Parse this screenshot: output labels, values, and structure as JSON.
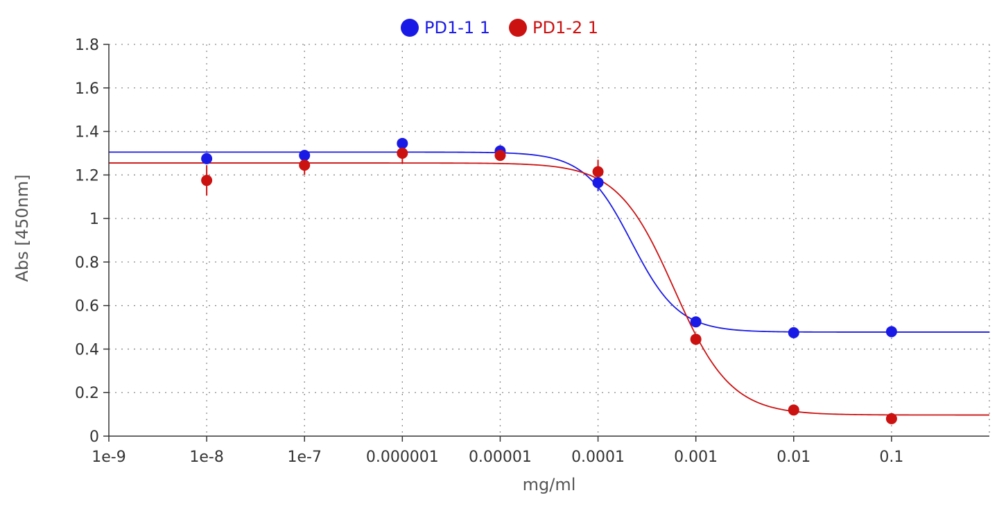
{
  "chart_data": {
    "type": "scatter",
    "title": "",
    "xlabel": "mg/ml",
    "ylabel": "Abs [450nm]",
    "x_scale": "log",
    "xlim": [
      1e-09,
      1
    ],
    "ylim": [
      0,
      1.8
    ],
    "x_ticks": [
      1e-09,
      1e-08,
      1e-07,
      1e-06,
      1e-05,
      0.0001,
      0.001,
      0.01,
      0.1
    ],
    "x_tick_labels": [
      "1e-9",
      "1e-8",
      "1e-7",
      "0.000001",
      "0.00001",
      "0.0001",
      "0.001",
      "0.01",
      "0.1"
    ],
    "y_ticks": [
      0,
      0.2,
      0.4,
      0.6,
      0.8,
      1,
      1.2,
      1.4,
      1.6,
      1.8
    ],
    "y_tick_labels": [
      "0",
      "0.2",
      "0.4",
      "0.6",
      "0.8",
      "1",
      "1.2",
      "1.4",
      "1.6",
      "1.8"
    ],
    "grid": true,
    "legend_position": "top-center",
    "series": [
      {
        "name": "PD1-1 1",
        "color": "#1a1ae6",
        "x": [
          1e-08,
          1e-07,
          1e-06,
          1e-05,
          0.0001,
          0.001,
          0.01,
          0.1
        ],
        "y": [
          1.275,
          1.29,
          1.345,
          1.31,
          1.165,
          0.525,
          0.475,
          0.48
        ],
        "error": [
          0.015,
          0.015,
          0.015,
          0.015,
          0.04,
          0.015,
          0.01,
          0.01
        ],
        "fit": {
          "model": "4PL",
          "top": 1.305,
          "bottom": 0.478,
          "ec50": 0.00022,
          "hill": 1.8
        }
      },
      {
        "name": "PD1-2 1",
        "color": "#cc1111",
        "x": [
          1e-08,
          1e-07,
          1e-06,
          1e-05,
          0.0001,
          0.001,
          0.01,
          0.1
        ],
        "y": [
          1.175,
          1.245,
          1.3,
          1.29,
          1.215,
          0.445,
          0.12,
          0.08
        ],
        "error": [
          0.07,
          0.045,
          0.045,
          0.015,
          0.055,
          0.015,
          0.01,
          0.01
        ],
        "fit": {
          "model": "4PL",
          "top": 1.255,
          "bottom": 0.097,
          "ec50": 0.0006,
          "hill": 1.5
        }
      }
    ]
  }
}
